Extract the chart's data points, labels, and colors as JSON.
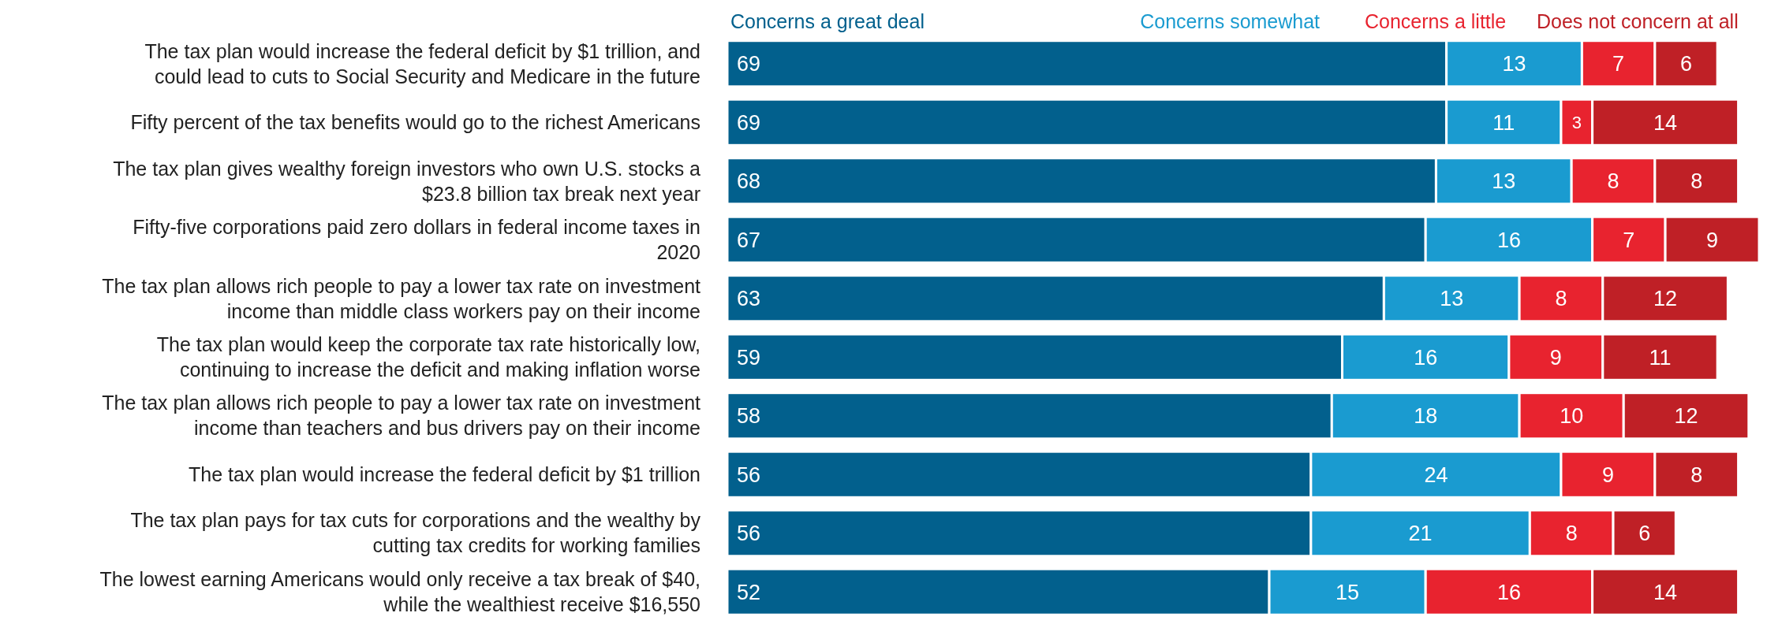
{
  "chart_data": {
    "type": "bar",
    "orientation": "horizontal",
    "stacked": true,
    "data_labels": true,
    "legend": "top",
    "categories": [
      "The tax plan would increase the federal deficit by $1 trillion, and could lead to cuts to Social Security and Medicare in the future",
      "Fifty percent of the tax benefits would go to the richest Americans",
      "The tax plan gives wealthy foreign investors who own U.S. stocks a $23.8 billion tax break next year",
      "Fifty-five corporations paid zero dollars in federal income taxes in 2020",
      "The tax plan allows rich people to pay a lower tax rate on investment income than middle class workers pay on their income",
      "The tax plan would keep the corporate tax rate historically low, continuing to increase the deficit and making inflation worse",
      "The tax plan allows rich people to pay a lower tax rate on investment income than teachers and bus drivers pay on their income",
      "The tax plan would increase the federal deficit by $1 trillion",
      "The tax plan pays for tax cuts for corporations and the wealthy by cutting tax credits for working families",
      "The lowest earning Americans would only receive a tax break of $40, while the wealthiest receive $16,550"
    ],
    "series": [
      {
        "name": "Concerns a great deal",
        "color": "#02608d",
        "values": [
          69,
          69,
          68,
          67,
          63,
          59,
          58,
          56,
          56,
          52
        ]
      },
      {
        "name": "Concerns somewhat",
        "color": "#1a9bd0",
        "values": [
          13,
          11,
          13,
          16,
          13,
          16,
          18,
          24,
          21,
          15
        ]
      },
      {
        "name": "Concerns a little",
        "color": "#e8232f",
        "values": [
          7,
          3,
          8,
          7,
          8,
          9,
          10,
          9,
          8,
          16
        ]
      },
      {
        "name": "Does not concern at all",
        "color": "#bf2026",
        "values": [
          6,
          14,
          8,
          9,
          12,
          11,
          12,
          8,
          6,
          14
        ]
      }
    ]
  }
}
